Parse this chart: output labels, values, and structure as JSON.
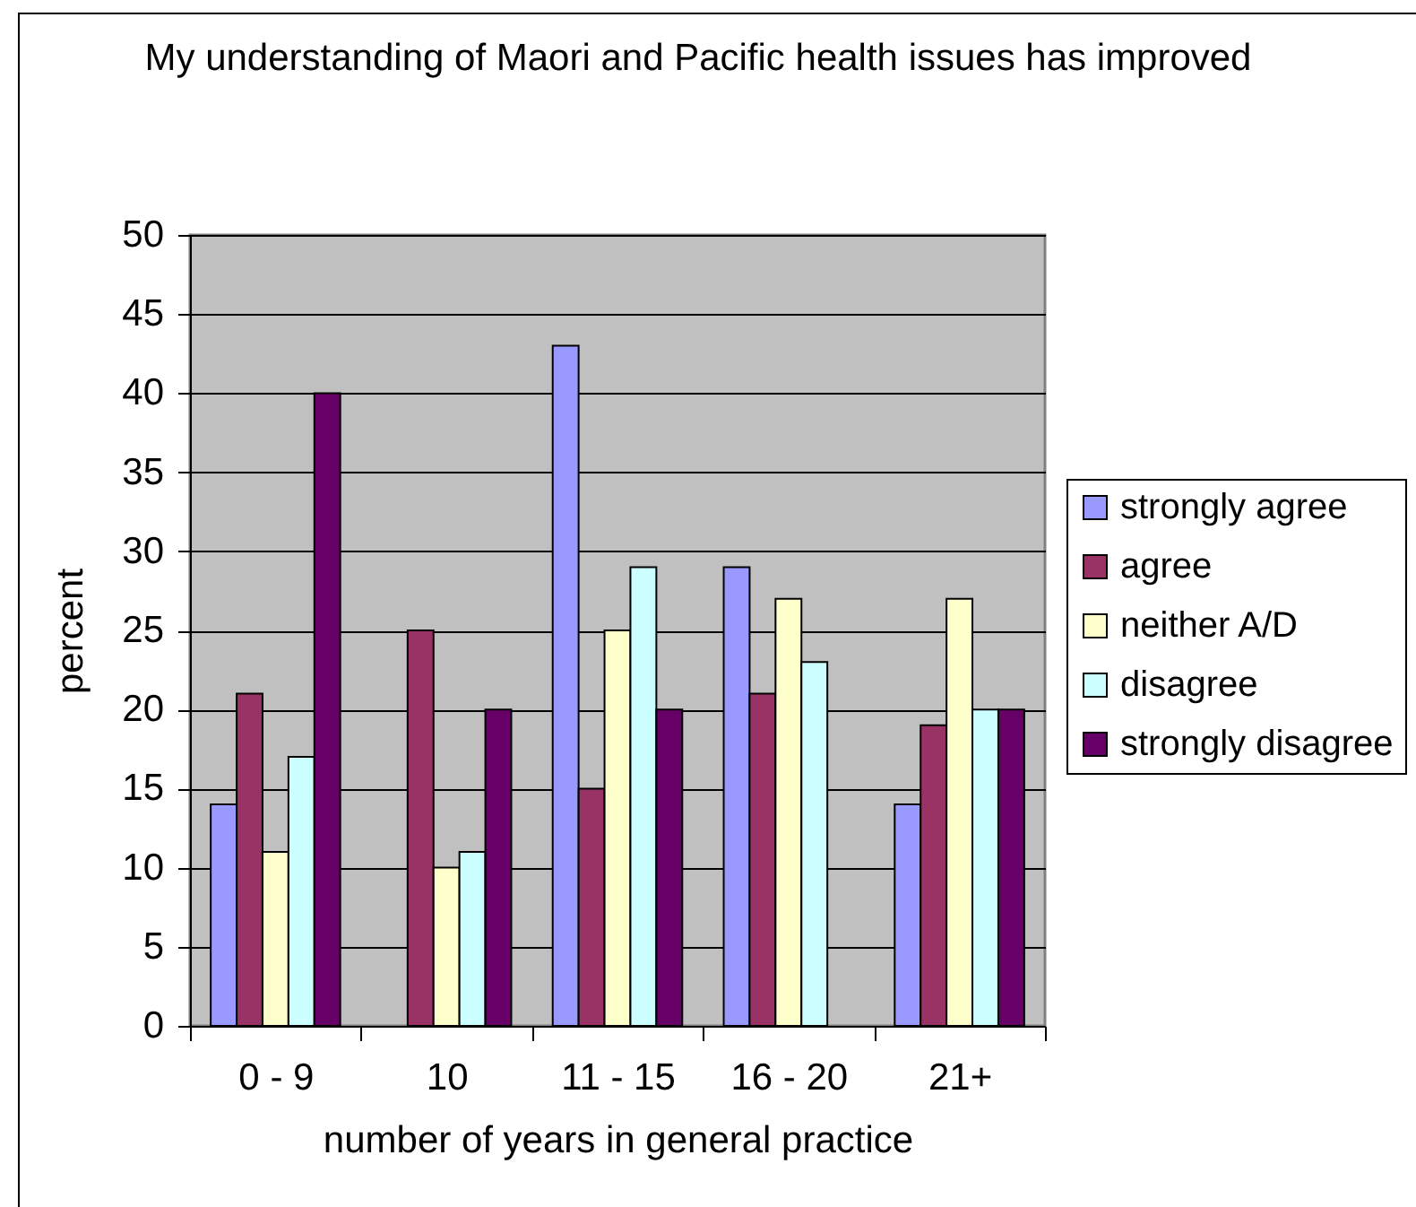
{
  "chart_data": {
    "type": "bar",
    "title": "My understanding of Maori and Pacific health issues has improved",
    "xlabel": "number of years in general practice",
    "ylabel": "percent",
    "categories": [
      "0 - 9",
      "10",
      "11 - 15",
      "16 - 20",
      "21+"
    ],
    "series": [
      {
        "name": "strongly agree",
        "color": "#9999ff",
        "values": [
          14,
          null,
          43,
          29,
          14
        ]
      },
      {
        "name": "agree",
        "color": "#993366",
        "values": [
          21,
          25,
          15,
          21,
          19
        ]
      },
      {
        "name": "neither A/D",
        "color": "#ffffcc",
        "values": [
          11,
          10,
          25,
          27,
          27
        ]
      },
      {
        "name": "disagree",
        "color": "#ccffff",
        "values": [
          17,
          11,
          29,
          23,
          20
        ]
      },
      {
        "name": "strongly disagree",
        "color": "#660066",
        "values": [
          40,
          20,
          20,
          null,
          20
        ]
      }
    ],
    "ylim": [
      0,
      50
    ],
    "yticks": [
      0,
      5,
      10,
      15,
      20,
      25,
      30,
      35,
      40,
      45,
      50
    ],
    "grid": "y",
    "legend": "right"
  }
}
